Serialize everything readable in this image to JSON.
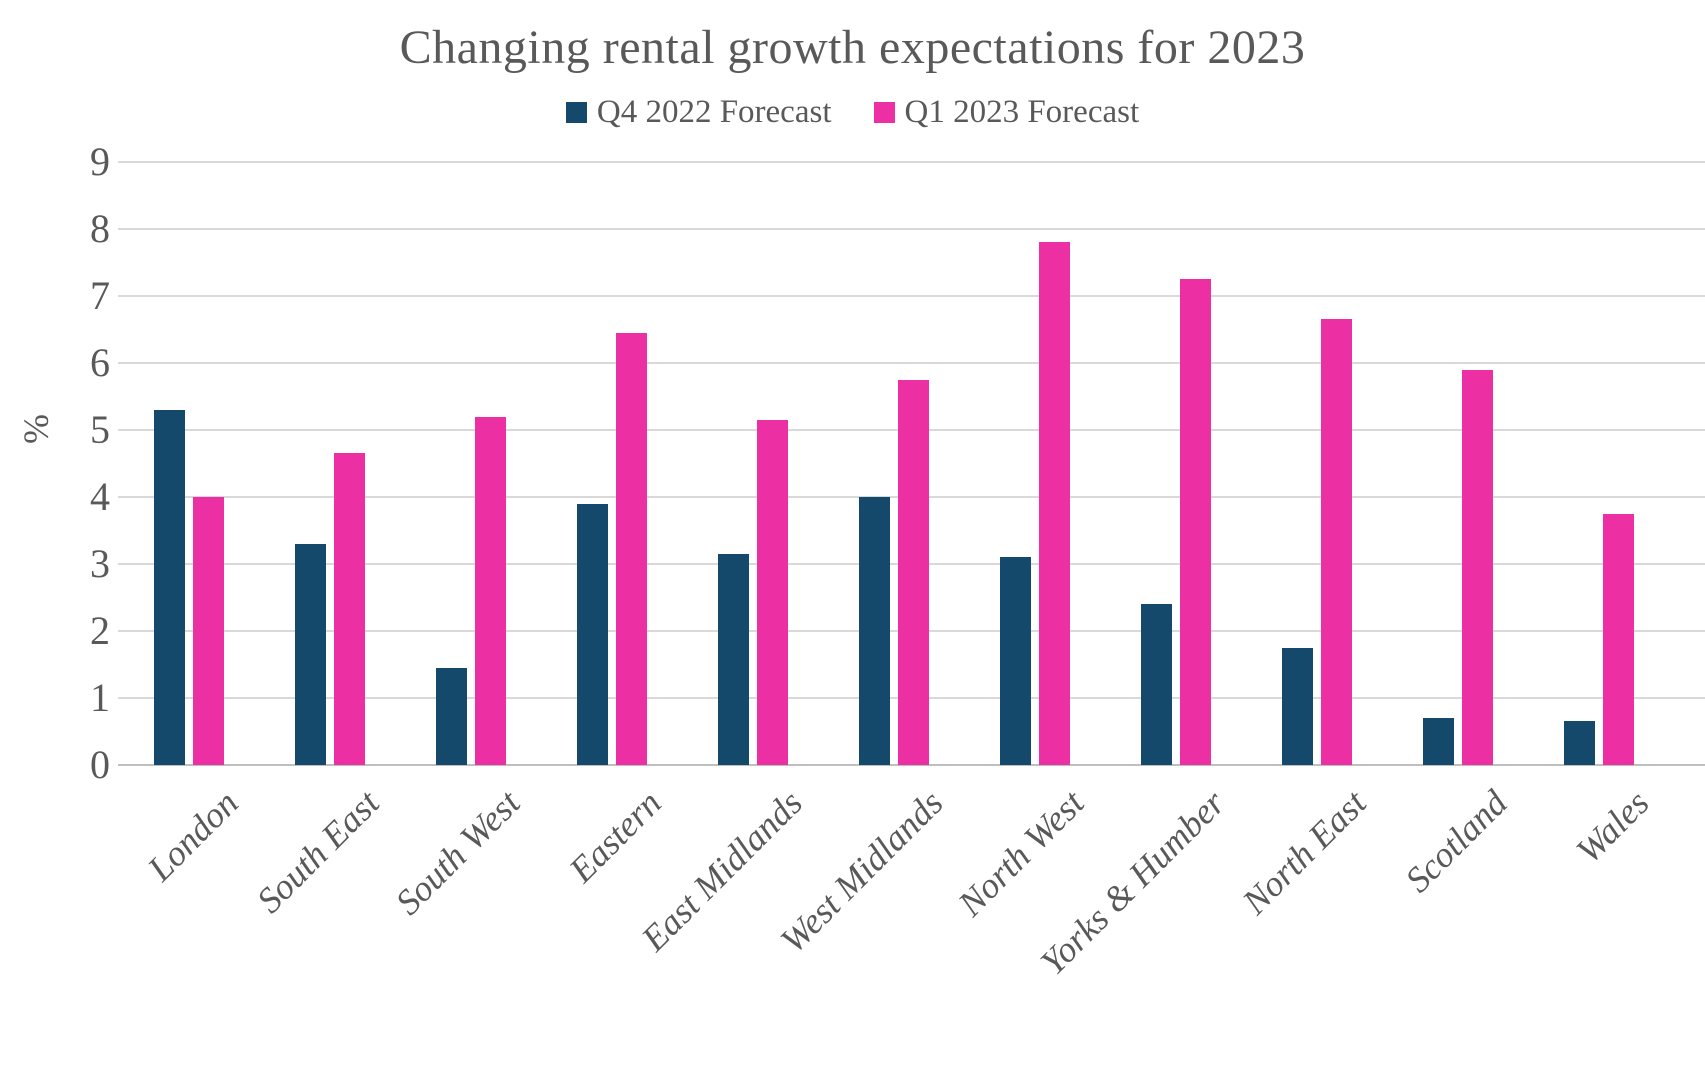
{
  "chart": {
    "colors": {
      "grid": "#D9D9D9",
      "zero_axis": "#BFBFBF",
      "text": "#595959",
      "background": "#FFFFFF"
    }
  },
  "chart_data": {
    "type": "bar",
    "title": "Changing rental growth expectations for 2023",
    "xlabel": "",
    "ylabel": "%",
    "ylim": [
      0,
      9
    ],
    "yticks": [
      0,
      1,
      2,
      3,
      4,
      5,
      6,
      7,
      8,
      9
    ],
    "grid": true,
    "legend_position": "top",
    "categories": [
      "London",
      "South East",
      "South West",
      "Eastern",
      "East Midlands",
      "West Midlands",
      "North West",
      "Yorks & Humber",
      "North East",
      "Scotland",
      "Wales"
    ],
    "series": [
      {
        "name": "Q4 2022 Forecast",
        "color": "#15496B",
        "values": [
          5.3,
          3.3,
          1.45,
          3.9,
          3.15,
          4.0,
          3.1,
          2.4,
          1.75,
          0.7,
          0.65
        ]
      },
      {
        "name": "Q1 2023 Forecast",
        "color": "#EC2FA2",
        "values": [
          4.0,
          4.65,
          5.2,
          6.45,
          5.15,
          5.75,
          7.8,
          7.25,
          6.65,
          5.9,
          3.75
        ]
      }
    ]
  }
}
